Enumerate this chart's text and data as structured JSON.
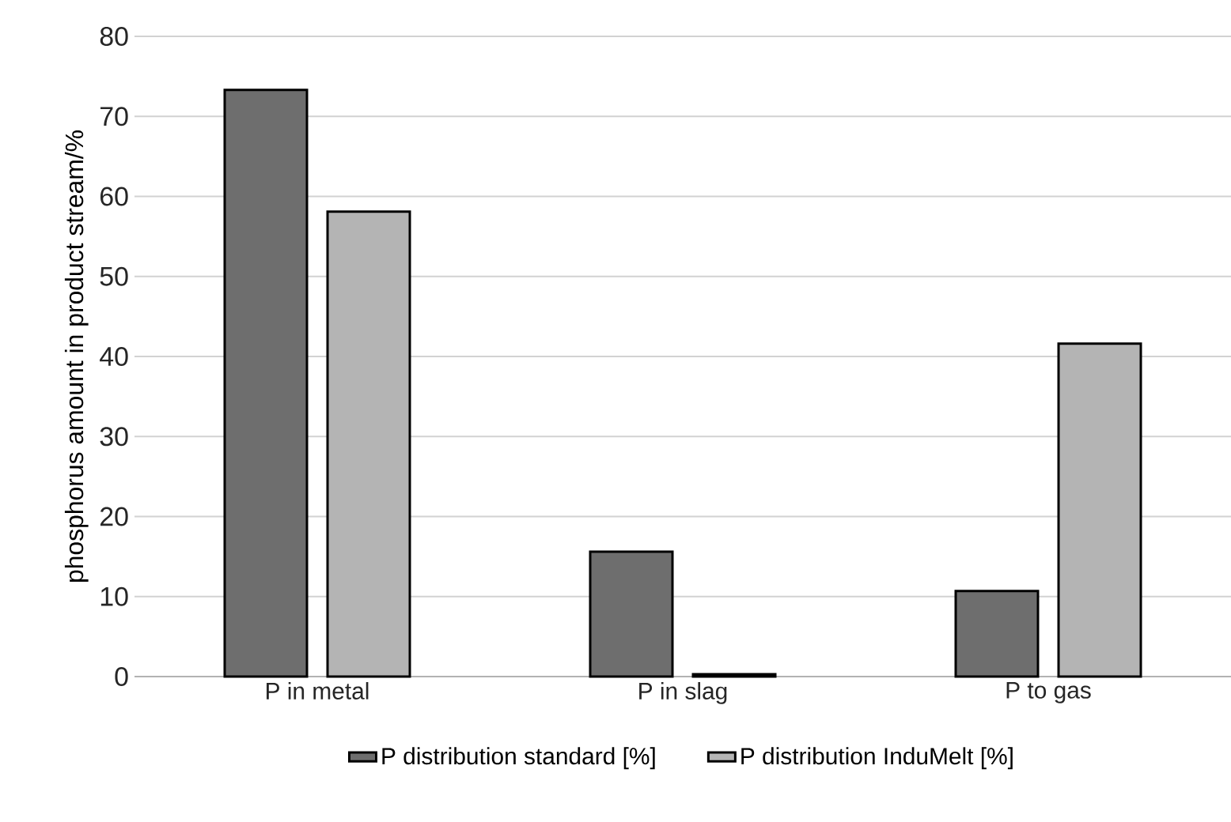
{
  "chart_data": {
    "type": "bar",
    "ylabel": "phosphorus amount in product stream/%",
    "categories": [
      "P in metal",
      "P in slag",
      "P to gas"
    ],
    "series": [
      {
        "name": "P distribution standard [%]",
        "color": "#6e6e6e",
        "values": [
          73.3,
          15.6,
          10.7
        ]
      },
      {
        "name": "P distribution InduMelt [%]",
        "color": "#b4b4b4",
        "values": [
          58.1,
          0.3,
          41.6
        ]
      }
    ],
    "ylim": [
      0,
      80
    ],
    "yticks": [
      0,
      10,
      20,
      30,
      40,
      50,
      60,
      70,
      80
    ],
    "grid": "y",
    "legend": "bottom"
  }
}
